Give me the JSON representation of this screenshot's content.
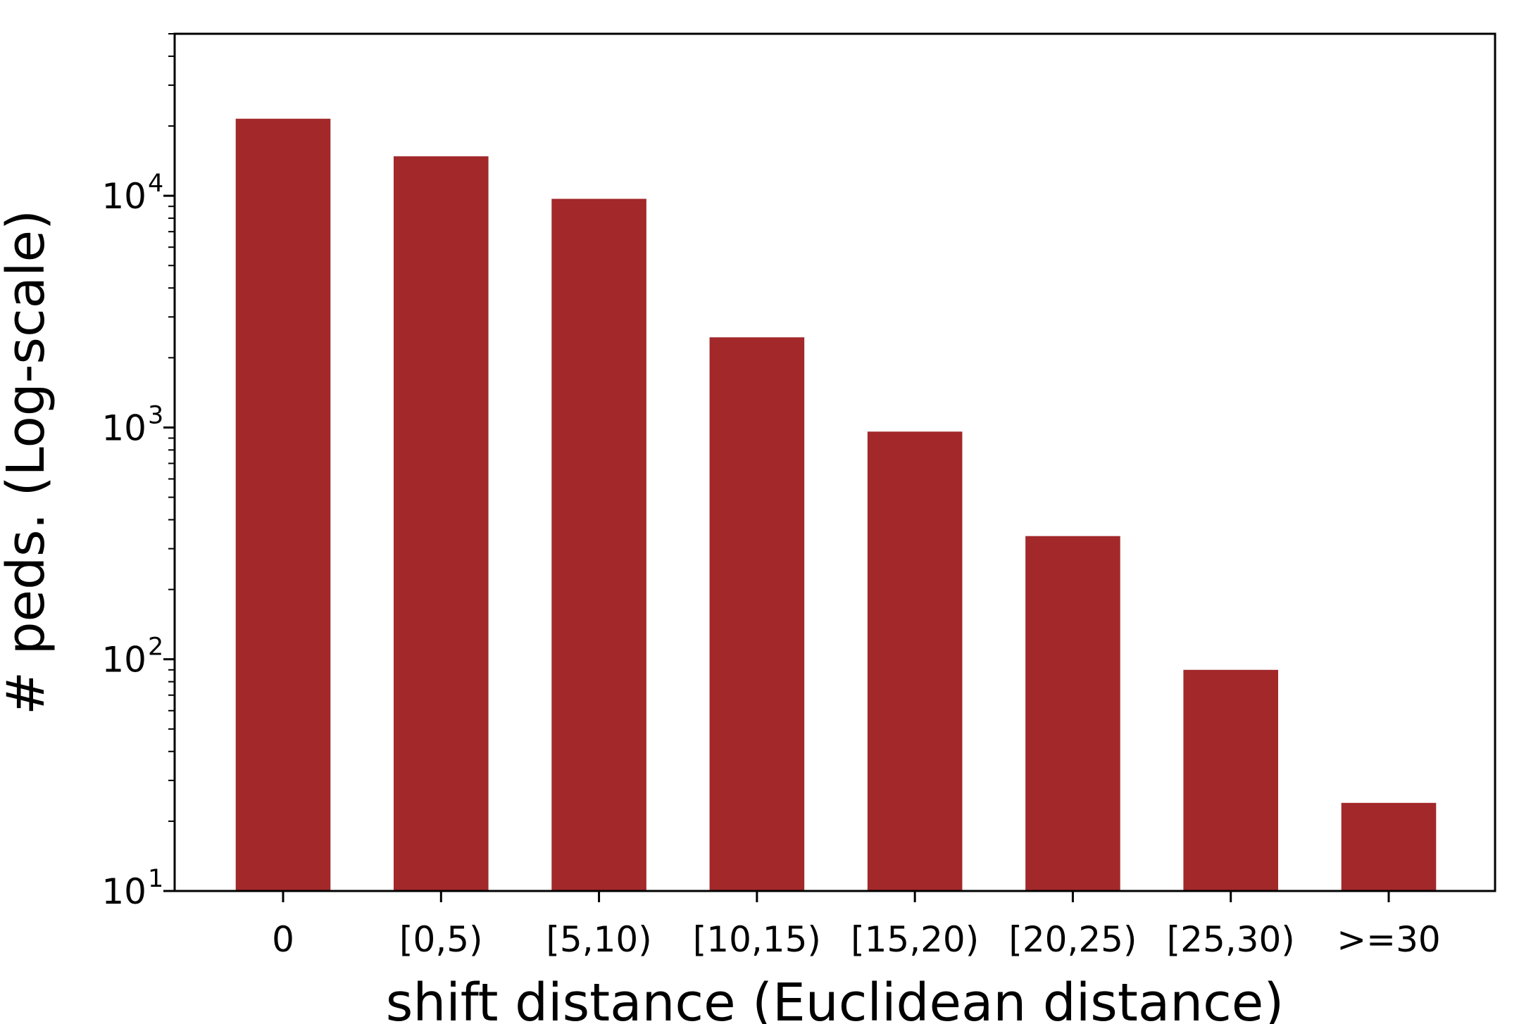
{
  "chart_data": {
    "type": "bar",
    "title": "",
    "xlabel": "shift distance (Euclidean distance)",
    "ylabel": "# peds. (Log-scale)",
    "yscale": "log",
    "ylim": [
      10,
      50000
    ],
    "y_tick_labels": [
      "10",
      "10",
      "10",
      "10"
    ],
    "y_tick_exponents": [
      "1",
      "2",
      "3",
      "4"
    ],
    "y_tick_values": [
      10,
      100,
      1000,
      10000
    ],
    "categories": [
      "0",
      "[0,5)",
      "[5,10)",
      "[10,15)",
      "[15,20)",
      "[20,25)",
      "[25,30)",
      ">=30"
    ],
    "values": [
      21500,
      14800,
      9700,
      2450,
      960,
      340,
      90,
      24
    ],
    "bar_color": "#a2282a",
    "grid": false,
    "legend": "none"
  }
}
